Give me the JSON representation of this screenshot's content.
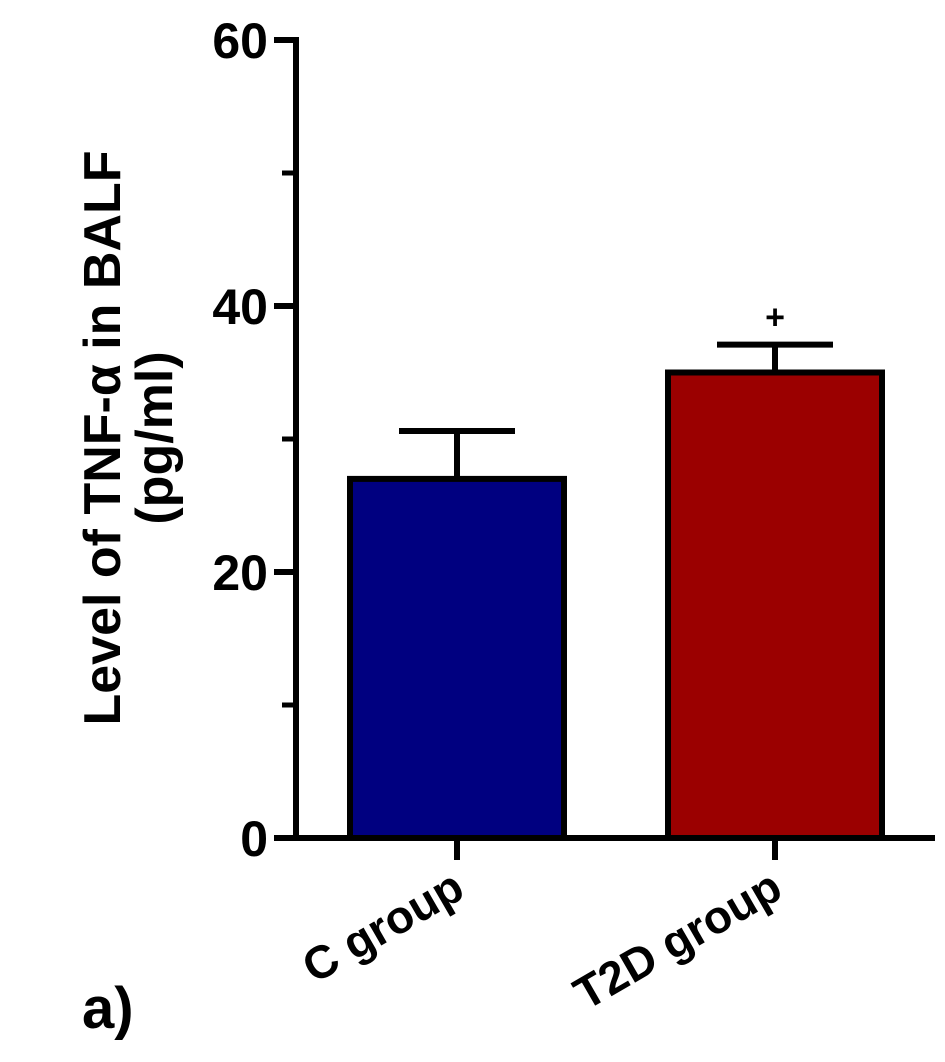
{
  "panel_label": "a)",
  "chart_data": {
    "type": "bar",
    "title": "",
    "xlabel": "",
    "ylabel_line1": "Level of TNF-α in BALF",
    "ylabel_line2": "(pg/ml)",
    "ylim": [
      0,
      60
    ],
    "y_major_ticks": [
      0,
      20,
      40,
      60
    ],
    "y_minor_ticks": [
      10,
      30,
      50
    ],
    "y_tick_labels": [
      "0",
      "20",
      "40",
      "60"
    ],
    "categories": [
      "C group",
      "T2D group"
    ],
    "values": [
      27,
      35
    ],
    "errors": [
      3.6,
      2.1
    ],
    "colors": [
      "#000080",
      "#9b0000"
    ],
    "annotations": [
      "",
      "+"
    ],
    "grid": false,
    "legend": "none"
  }
}
